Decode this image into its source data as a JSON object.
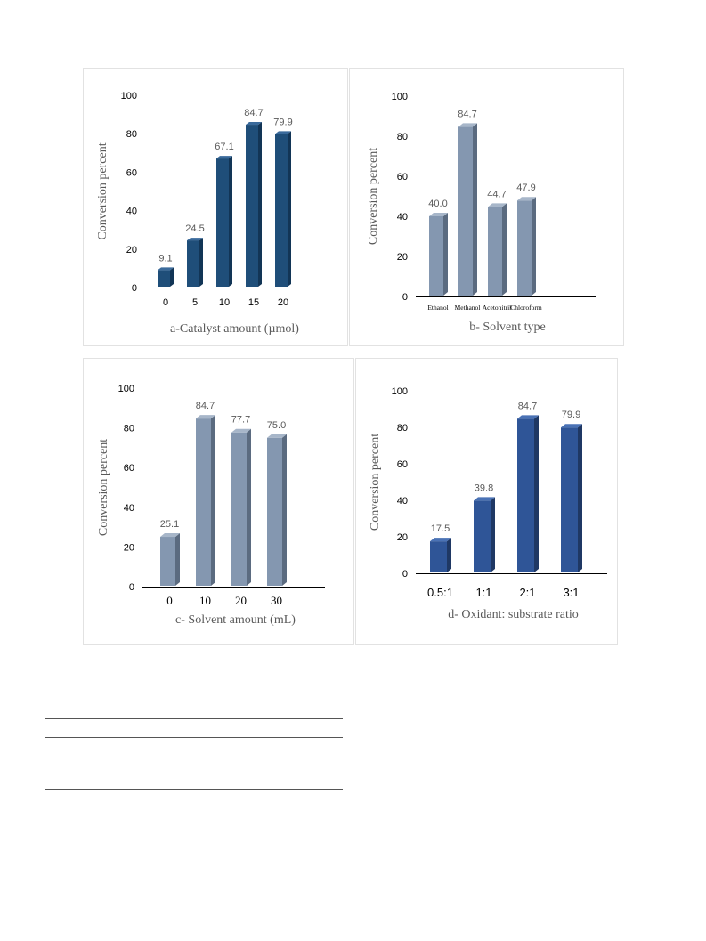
{
  "chart_data": [
    {
      "type": "bar",
      "categories": [
        "0",
        "5",
        "10",
        "15",
        "20"
      ],
      "values": [
        9.1,
        24.5,
        67.1,
        84.7,
        79.9
      ],
      "data_labels": [
        "9.1",
        "24.5",
        "67.1",
        "84.7",
        "79.9"
      ],
      "ylabel": "Conversion percent",
      "xlabel": "a-Catalyst amount (µmol)",
      "ylim": [
        0,
        100
      ],
      "yticks": [
        0,
        20,
        40,
        60,
        80,
        100
      ],
      "grid": false,
      "colors": {
        "front": "#1f4e79",
        "side": "#123556",
        "top": "#3a6a9b"
      }
    },
    {
      "type": "bar",
      "categories": [
        "Ethanol",
        "Methanol",
        "Acetonitril",
        "Chloroform"
      ],
      "values": [
        40.0,
        84.7,
        44.7,
        47.9
      ],
      "data_labels": [
        "40.0",
        "84.7",
        "44.7",
        "47.9"
      ],
      "ylabel": "Conversion percent",
      "xlabel": "b- Solvent type",
      "ylim": [
        0,
        100
      ],
      "yticks": [
        0,
        20,
        40,
        60,
        80,
        100
      ],
      "grid": false,
      "colors": {
        "front": "#8497b0",
        "side": "#5b6b80",
        "top": "#a7b6c9"
      }
    },
    {
      "type": "bar",
      "categories": [
        "0",
        "10",
        "20",
        "30"
      ],
      "values": [
        25.1,
        84.7,
        77.7,
        75.0
      ],
      "data_labels": [
        "25.1",
        "84.7",
        "77.7",
        "75.0"
      ],
      "ylabel": "Conversion percent",
      "xlabel": "c- Solvent amount (mL)",
      "ylim": [
        0,
        100
      ],
      "yticks": [
        0,
        20,
        40,
        60,
        80,
        100
      ],
      "grid": false,
      "colors": {
        "front": "#8497b0",
        "side": "#5b6b80",
        "top": "#a7b6c9"
      }
    },
    {
      "type": "bar",
      "categories": [
        "0.5:1",
        "1:1",
        "2:1",
        "3:1"
      ],
      "values": [
        17.5,
        39.8,
        84.7,
        79.9
      ],
      "data_labels": [
        "17.5",
        "39.8",
        "84.7",
        "79.9"
      ],
      "ylabel": "Conversion percent",
      "xlabel": "d- Oxidant: substrate ratio",
      "ylim": [
        0,
        100
      ],
      "yticks": [
        0,
        20,
        40,
        60,
        80,
        100
      ],
      "grid": false,
      "colors": {
        "front": "#2f5597",
        "side": "#1f3864",
        "top": "#4a72b5"
      }
    }
  ]
}
